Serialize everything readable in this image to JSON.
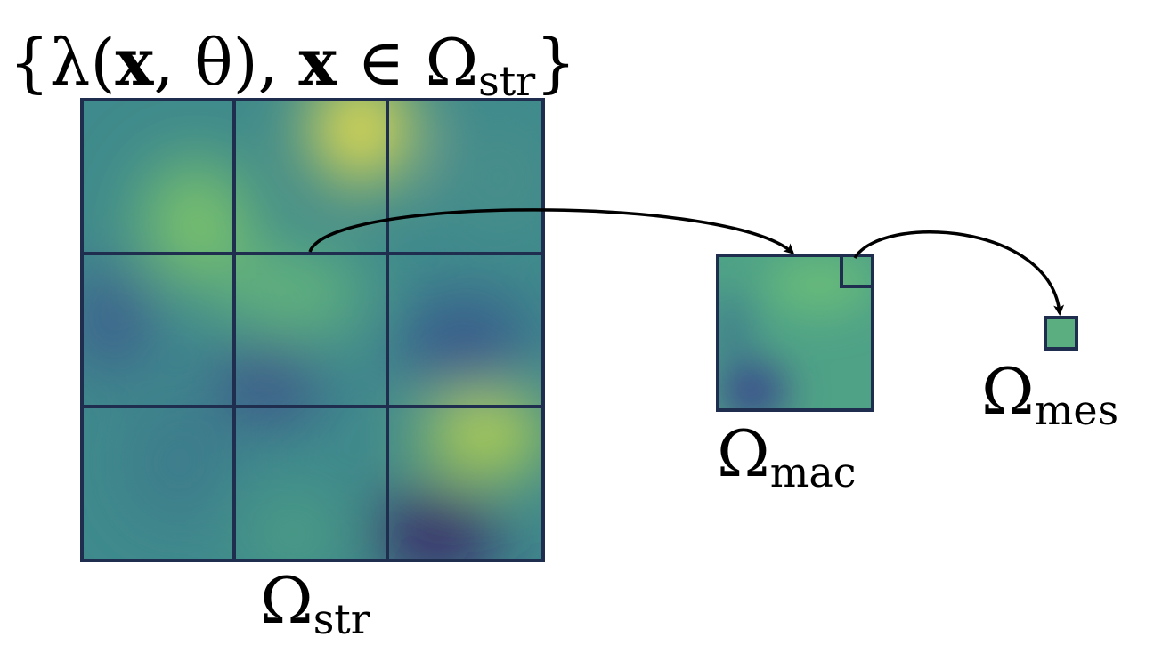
{
  "title": {
    "parts": [
      "{λ(",
      "x",
      ", θ), ",
      "x",
      " ∈ Ω",
      "str",
      "}"
    ]
  },
  "nodes": [
    {
      "symbol": "Ω",
      "subscript": "str"
    },
    {
      "symbol": "Ω",
      "subscript": "mac"
    },
    {
      "symbol": "Ω",
      "subscript": "mes"
    }
  ]
}
